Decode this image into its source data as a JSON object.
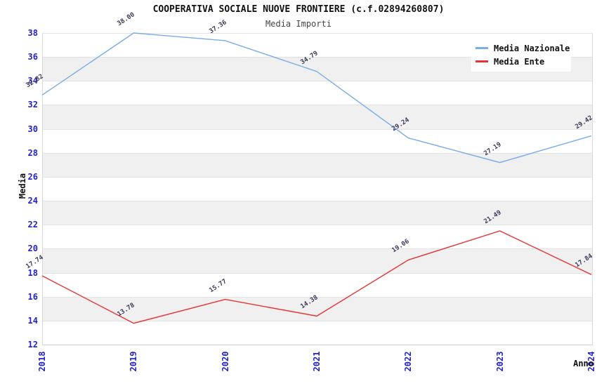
{
  "header": {
    "title": "COOPERATIVA SOCIALE NUOVE FRONTIERE (c.f.02894260807)",
    "subtitle": "Media Importi"
  },
  "chart_data": {
    "type": "line",
    "x": [
      "2018",
      "2019",
      "2020",
      "2021",
      "2022",
      "2023",
      "2024"
    ],
    "series": [
      {
        "name": "Media Nazionale",
        "color": "#79ade6",
        "values": [
          32.82,
          38.0,
          37.36,
          34.79,
          29.24,
          27.19,
          29.42
        ]
      },
      {
        "name": "Media Ente",
        "color": "#e53333",
        "values": [
          17.74,
          13.78,
          15.77,
          14.38,
          19.06,
          21.49,
          17.84
        ]
      }
    ],
    "xlabel": "Anno",
    "ylabel": "Media",
    "ylim": [
      12,
      38
    ],
    "ytick_step": 2,
    "grid": "alternating horizontal bands",
    "legend_position": "top-right",
    "colors": {
      "tick_label": "#2222cc",
      "data_label": "#3a3a55",
      "band_gray": "#f0f0f0",
      "band_white": "#ffffff",
      "title": "#111111",
      "subtitle": "#444444"
    }
  }
}
